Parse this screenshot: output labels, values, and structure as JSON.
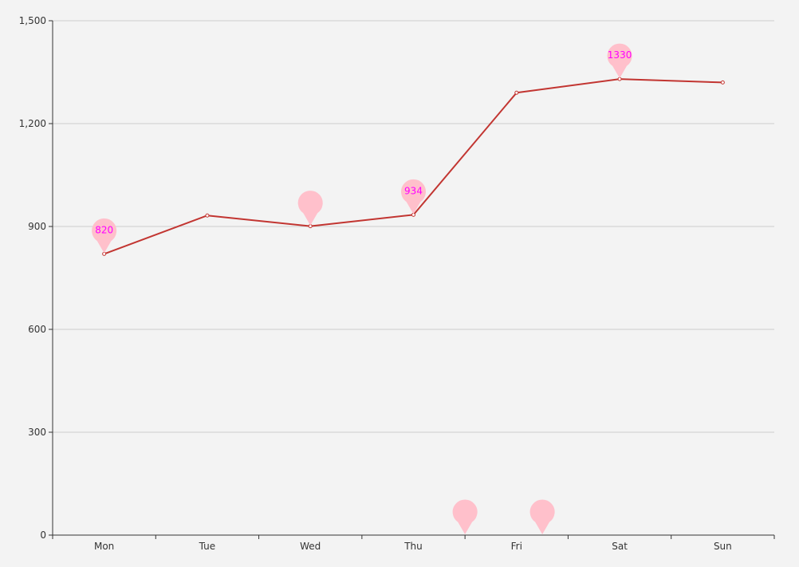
{
  "colors": {
    "background": "#f3f3f3",
    "line": "#c23531",
    "grid": "#cccccc",
    "axis": "#333333",
    "pin": "#ffc0cb",
    "pin_label": "#ff00ff"
  },
  "chart_data": {
    "type": "line",
    "categories": [
      "Mon",
      "Tue",
      "Wed",
      "Thu",
      "Fri",
      "Sat",
      "Sun"
    ],
    "series": [
      {
        "values": [
          820,
          932,
          901,
          934,
          1290,
          1330,
          1320
        ]
      }
    ],
    "ylim": [
      0,
      1500
    ],
    "yticks": [
      0,
      300,
      600,
      900,
      1200,
      1500
    ],
    "ytick_labels": [
      "0",
      "300",
      "600",
      "900",
      "1,200",
      "1,500"
    ],
    "grid": true,
    "mark_points": [
      {
        "category": "Mon",
        "value": 820,
        "label": "820"
      },
      {
        "category": "Wed",
        "value": 901,
        "label": ""
      },
      {
        "category": "Thu",
        "value": 934,
        "label": "934"
      },
      {
        "category": "Sat",
        "value": 1330,
        "label": "1330"
      },
      {
        "x": 3.5,
        "value": 0,
        "label": ""
      },
      {
        "x": 4.25,
        "value": 0,
        "label": ""
      }
    ]
  }
}
